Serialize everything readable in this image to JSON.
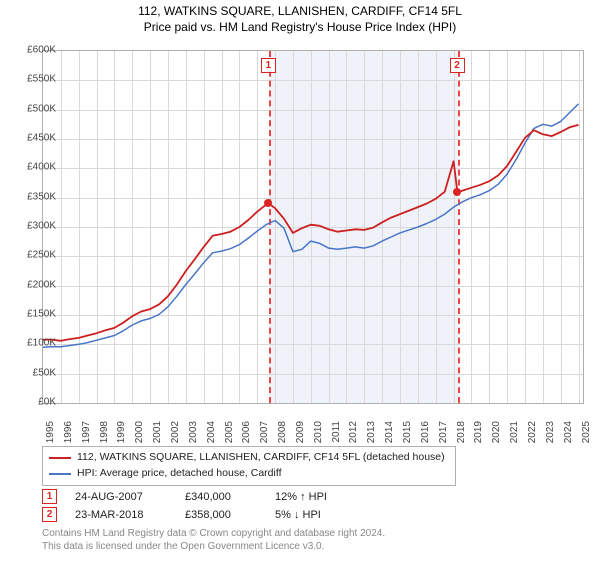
{
  "title": "112, WATKINS SQUARE, LLANISHEN, CARDIFF, CF14 5FL",
  "subtitle": "Price paid vs. HM Land Registry's House Price Index (HPI)",
  "chart": {
    "type": "line",
    "background_color": "#ffffff",
    "grid_color": "#d9d9d9",
    "border_color": "#b0b0b0",
    "x": {
      "min": 1995,
      "max": 2025.25,
      "ticks": [
        1995,
        1996,
        1997,
        1998,
        1999,
        2000,
        2001,
        2002,
        2003,
        2004,
        2005,
        2006,
        2007,
        2008,
        2009,
        2010,
        2011,
        2012,
        2013,
        2014,
        2015,
        2016,
        2017,
        2018,
        2019,
        2020,
        2021,
        2022,
        2023,
        2024,
        2025
      ]
    },
    "y": {
      "min": 0,
      "max": 600000,
      "tick_step": 50000,
      "prefix": "£",
      "suffix": "K",
      "divisor": 1000
    },
    "shaded_range": {
      "from": 2007.65,
      "to": 2018.22,
      "color": "rgba(200,210,235,0.28)"
    },
    "event_lines": [
      {
        "x": 2007.65,
        "label": "1",
        "marker_y": 340000
      },
      {
        "x": 2018.22,
        "label": "2",
        "marker_y": 358000
      }
    ],
    "series": [
      {
        "name": "property",
        "label": "112, WATKINS SQUARE, LLANISHEN, CARDIFF, CF14 5FL (detached house)",
        "color": "#cc1f1f",
        "line_width": 1.8,
        "points": [
          [
            1995,
            108000
          ],
          [
            1995.5,
            108000
          ],
          [
            1996,
            106000
          ],
          [
            1996.5,
            109000
          ],
          [
            1997,
            111000
          ],
          [
            1997.5,
            115000
          ],
          [
            1998,
            119000
          ],
          [
            1998.5,
            124000
          ],
          [
            1999,
            128000
          ],
          [
            1999.5,
            137000
          ],
          [
            2000,
            148000
          ],
          [
            2000.5,
            156000
          ],
          [
            2001,
            160000
          ],
          [
            2001.5,
            168000
          ],
          [
            2002,
            182000
          ],
          [
            2002.5,
            202000
          ],
          [
            2003,
            225000
          ],
          [
            2003.5,
            245000
          ],
          [
            2004,
            266000
          ],
          [
            2004.5,
            285000
          ],
          [
            2005,
            288000
          ],
          [
            2005.5,
            292000
          ],
          [
            2006,
            300000
          ],
          [
            2006.5,
            312000
          ],
          [
            2007,
            326000
          ],
          [
            2007.5,
            338000
          ],
          [
            2007.65,
            340000
          ],
          [
            2008,
            332000
          ],
          [
            2008.5,
            314000
          ],
          [
            2009,
            290000
          ],
          [
            2009.5,
            298000
          ],
          [
            2010,
            304000
          ],
          [
            2010.5,
            302000
          ],
          [
            2011,
            296000
          ],
          [
            2011.5,
            292000
          ],
          [
            2012,
            294000
          ],
          [
            2012.5,
            296000
          ],
          [
            2013,
            295000
          ],
          [
            2013.5,
            299000
          ],
          [
            2014,
            308000
          ],
          [
            2014.5,
            316000
          ],
          [
            2015,
            322000
          ],
          [
            2015.5,
            328000
          ],
          [
            2016,
            334000
          ],
          [
            2016.5,
            340000
          ],
          [
            2017,
            348000
          ],
          [
            2017.5,
            360000
          ],
          [
            2018,
            412000
          ],
          [
            2018.22,
            358000
          ],
          [
            2018.5,
            362000
          ],
          [
            2019,
            367000
          ],
          [
            2019.5,
            372000
          ],
          [
            2020,
            378000
          ],
          [
            2020.5,
            388000
          ],
          [
            2021,
            404000
          ],
          [
            2021.5,
            428000
          ],
          [
            2022,
            452000
          ],
          [
            2022.5,
            465000
          ],
          [
            2023,
            458000
          ],
          [
            2023.5,
            455000
          ],
          [
            2024,
            462000
          ],
          [
            2024.5,
            470000
          ],
          [
            2025,
            474000
          ]
        ]
      },
      {
        "name": "hpi",
        "label": "HPI: Average price, detached house, Cardiff",
        "color": "#4a76c7",
        "line_width": 1.5,
        "points": [
          [
            1995,
            95000
          ],
          [
            1995.5,
            96000
          ],
          [
            1996,
            96000
          ],
          [
            1996.5,
            98000
          ],
          [
            1997,
            100000
          ],
          [
            1997.5,
            103000
          ],
          [
            1998,
            107000
          ],
          [
            1998.5,
            111000
          ],
          [
            1999,
            115000
          ],
          [
            1999.5,
            123000
          ],
          [
            2000,
            133000
          ],
          [
            2000.5,
            140000
          ],
          [
            2001,
            144000
          ],
          [
            2001.5,
            151000
          ],
          [
            2002,
            164000
          ],
          [
            2002.5,
            182000
          ],
          [
            2003,
            202000
          ],
          [
            2003.5,
            220000
          ],
          [
            2004,
            239000
          ],
          [
            2004.5,
            256000
          ],
          [
            2005,
            259000
          ],
          [
            2005.5,
            263000
          ],
          [
            2006,
            270000
          ],
          [
            2006.5,
            281000
          ],
          [
            2007,
            293000
          ],
          [
            2007.5,
            304000
          ],
          [
            2008,
            311000
          ],
          [
            2008.5,
            298000
          ],
          [
            2009,
            258000
          ],
          [
            2009.5,
            262000
          ],
          [
            2010,
            276000
          ],
          [
            2010.5,
            272000
          ],
          [
            2011,
            264000
          ],
          [
            2011.5,
            262000
          ],
          [
            2012,
            264000
          ],
          [
            2012.5,
            266000
          ],
          [
            2013,
            264000
          ],
          [
            2013.5,
            268000
          ],
          [
            2014,
            276000
          ],
          [
            2014.5,
            283000
          ],
          [
            2015,
            290000
          ],
          [
            2015.5,
            295000
          ],
          [
            2016,
            300000
          ],
          [
            2016.5,
            306000
          ],
          [
            2017,
            313000
          ],
          [
            2017.5,
            322000
          ],
          [
            2018,
            334000
          ],
          [
            2018.5,
            343000
          ],
          [
            2019,
            350000
          ],
          [
            2019.5,
            355000
          ],
          [
            2020,
            362000
          ],
          [
            2020.5,
            373000
          ],
          [
            2021,
            390000
          ],
          [
            2021.5,
            415000
          ],
          [
            2022,
            443000
          ],
          [
            2022.5,
            468000
          ],
          [
            2023,
            475000
          ],
          [
            2023.5,
            472000
          ],
          [
            2024,
            480000
          ],
          [
            2024.5,
            495000
          ],
          [
            2025,
            510000
          ]
        ]
      }
    ]
  },
  "events": [
    {
      "num": "1",
      "date": "24-AUG-2007",
      "price": "£340,000",
      "delta": "12% ↑ HPI"
    },
    {
      "num": "2",
      "date": "23-MAR-2018",
      "price": "£358,000",
      "delta": "5% ↓ HPI"
    }
  ],
  "footer": {
    "line1": "Contains HM Land Registry data © Crown copyright and database right 2024.",
    "line2": "This data is licensed under the Open Government Licence v3.0."
  }
}
